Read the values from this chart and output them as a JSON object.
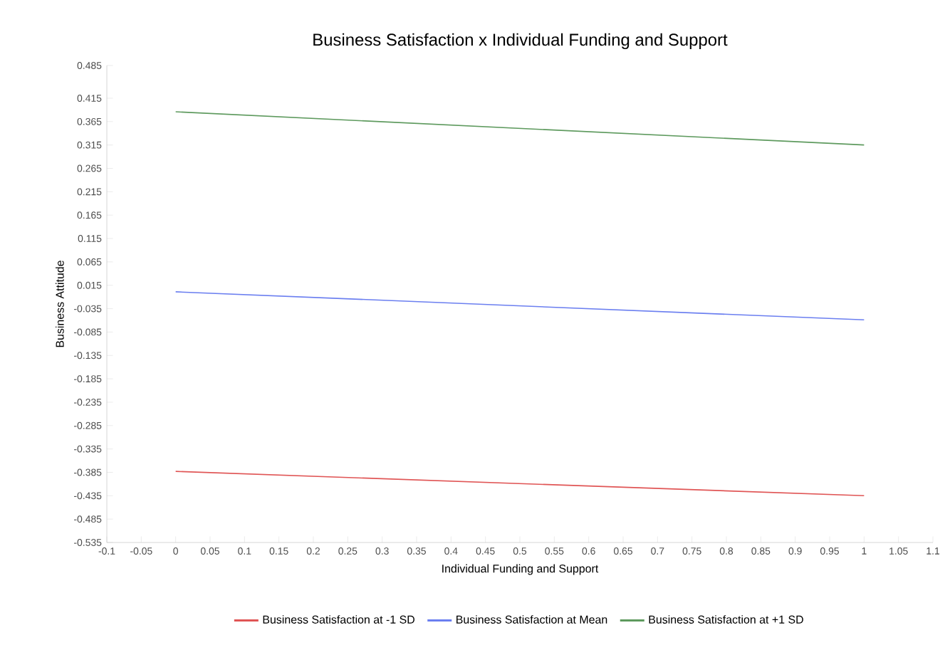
{
  "chart_data": {
    "type": "line",
    "title": "Business Satisfaction x Individual Funding and Support",
    "xlabel": "Individual Funding and Support",
    "ylabel": "Business Attitude",
    "x": [
      0,
      1
    ],
    "series": [
      {
        "name": "Business Satisfaction at -1 SD",
        "color": "#e05555",
        "values": [
          -0.383,
          -0.435
        ]
      },
      {
        "name": "Business Satisfaction at Mean",
        "color": "#6b7ff0",
        "values": [
          0.001,
          -0.059
        ]
      },
      {
        "name": "Business Satisfaction at +1 SD",
        "color": "#5e9a5e",
        "values": [
          0.386,
          0.315
        ]
      }
    ],
    "xlim": [
      -0.1,
      1.1
    ],
    "xticks": [
      -0.1,
      -0.05,
      0,
      0.05,
      0.1,
      0.15,
      0.2,
      0.25,
      0.3,
      0.35,
      0.4,
      0.45,
      0.5,
      0.55,
      0.6,
      0.65,
      0.7,
      0.75,
      0.8,
      0.85,
      0.9,
      0.95,
      1,
      1.05,
      1.1
    ],
    "ylim": [
      -0.535,
      0.485
    ],
    "yticks": [
      -0.535,
      -0.485,
      -0.435,
      -0.385,
      -0.335,
      -0.285,
      -0.235,
      -0.185,
      -0.135,
      -0.085,
      -0.035,
      0.015,
      0.065,
      0.115,
      0.165,
      0.215,
      0.265,
      0.315,
      0.365,
      0.415,
      0.485
    ],
    "legend": "bottom",
    "grid": false,
    "marker": "none",
    "line_style": "solid"
  }
}
